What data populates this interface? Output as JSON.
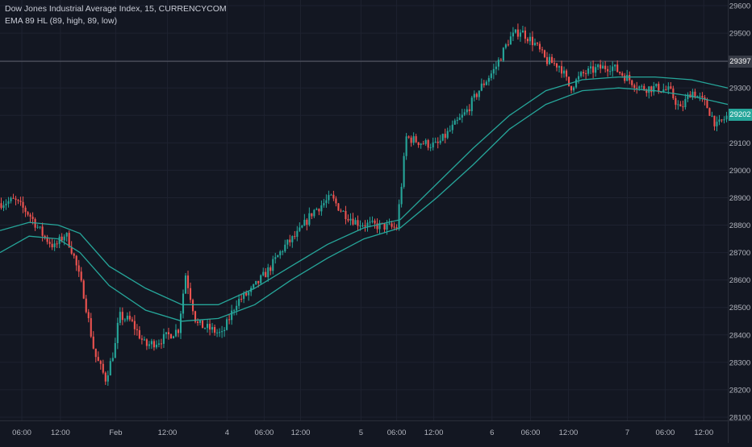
{
  "legend": {
    "symbol_line": "Dow Jones Industrial Average Index, 15, CURRENCYCOM",
    "indicator_line": "EMA 89 HL (89, high, 89, low)"
  },
  "price_tags": {
    "crosshair": "29397",
    "last": "29202"
  },
  "colors": {
    "background": "#131722",
    "up_candle": "#26a69a",
    "down_candle": "#ef5350",
    "ema_band": "#26a69a",
    "grid": "#1e2230",
    "axis_text": "#b2b5be"
  },
  "chart_data": {
    "type": "candlestick",
    "title": "Dow Jones Industrial Average Index, 15, CURRENCYCOM",
    "interval": "15",
    "ylim": [
      28100,
      29600
    ],
    "y_ticks": [
      "28100",
      "28200",
      "28300",
      "28400",
      "28500",
      "28600",
      "28700",
      "28800",
      "28900",
      "29000",
      "29100",
      "29200",
      "29300",
      "29400",
      "29500",
      "29600"
    ],
    "x_ticks": [
      {
        "label": "06:00",
        "pos": 0.03
      },
      {
        "label": "12:00",
        "pos": 0.083
      },
      {
        "label": "Feb",
        "pos": 0.159
      },
      {
        "label": "12:00",
        "pos": 0.23
      },
      {
        "label": "4",
        "pos": 0.312
      },
      {
        "label": "06:00",
        "pos": 0.363
      },
      {
        "label": "12:00",
        "pos": 0.413
      },
      {
        "label": "5",
        "pos": 0.496
      },
      {
        "label": "06:00",
        "pos": 0.545
      },
      {
        "label": "12:00",
        "pos": 0.596
      },
      {
        "label": "6",
        "pos": 0.676
      },
      {
        "label": "06:00",
        "pos": 0.729
      },
      {
        "label": "12:00",
        "pos": 0.781
      },
      {
        "label": "7",
        "pos": 0.862
      },
      {
        "label": "06:00",
        "pos": 0.914
      },
      {
        "label": "12:00",
        "pos": 0.967
      }
    ],
    "crosshair_price": 29397,
    "last_price": 29202,
    "price_path": [
      {
        "t": 0.0,
        "p": 28880
      },
      {
        "t": 0.02,
        "p": 28890
      },
      {
        "t": 0.04,
        "p": 28840
      },
      {
        "t": 0.06,
        "p": 28760
      },
      {
        "t": 0.075,
        "p": 28720
      },
      {
        "t": 0.09,
        "p": 28770
      },
      {
        "t": 0.1,
        "p": 28700
      },
      {
        "t": 0.115,
        "p": 28550
      },
      {
        "t": 0.13,
        "p": 28330
      },
      {
        "t": 0.145,
        "p": 28240
      },
      {
        "t": 0.152,
        "p": 28300
      },
      {
        "t": 0.16,
        "p": 28380
      },
      {
        "t": 0.163,
        "p": 28470
      },
      {
        "t": 0.18,
        "p": 28450
      },
      {
        "t": 0.2,
        "p": 28360
      },
      {
        "t": 0.22,
        "p": 28380
      },
      {
        "t": 0.245,
        "p": 28420
      },
      {
        "t": 0.255,
        "p": 28620
      },
      {
        "t": 0.27,
        "p": 28440
      },
      {
        "t": 0.29,
        "p": 28420
      },
      {
        "t": 0.305,
        "p": 28400
      },
      {
        "t": 0.325,
        "p": 28520
      },
      {
        "t": 0.345,
        "p": 28560
      },
      {
        "t": 0.37,
        "p": 28640
      },
      {
        "t": 0.39,
        "p": 28720
      },
      {
        "t": 0.41,
        "p": 28770
      },
      {
        "t": 0.43,
        "p": 28850
      },
      {
        "t": 0.455,
        "p": 28900
      },
      {
        "t": 0.47,
        "p": 28850
      },
      {
        "t": 0.49,
        "p": 28810
      },
      {
        "t": 0.51,
        "p": 28800
      },
      {
        "t": 0.545,
        "p": 28790
      },
      {
        "t": 0.553,
        "p": 28980
      },
      {
        "t": 0.558,
        "p": 29120
      },
      {
        "t": 0.58,
        "p": 29100
      },
      {
        "t": 0.6,
        "p": 29090
      },
      {
        "t": 0.62,
        "p": 29150
      },
      {
        "t": 0.64,
        "p": 29210
      },
      {
        "t": 0.66,
        "p": 29300
      },
      {
        "t": 0.68,
        "p": 29370
      },
      {
        "t": 0.7,
        "p": 29480
      },
      {
        "t": 0.715,
        "p": 29510
      },
      {
        "t": 0.735,
        "p": 29460
      },
      {
        "t": 0.75,
        "p": 29400
      },
      {
        "t": 0.77,
        "p": 29380
      },
      {
        "t": 0.783,
        "p": 29300
      },
      {
        "t": 0.8,
        "p": 29350
      },
      {
        "t": 0.82,
        "p": 29370
      },
      {
        "t": 0.84,
        "p": 29380
      },
      {
        "t": 0.86,
        "p": 29340
      },
      {
        "t": 0.88,
        "p": 29300
      },
      {
        "t": 0.9,
        "p": 29300
      },
      {
        "t": 0.92,
        "p": 29290
      },
      {
        "t": 0.935,
        "p": 29220
      },
      {
        "t": 0.95,
        "p": 29290
      },
      {
        "t": 0.97,
        "p": 29240
      },
      {
        "t": 0.985,
        "p": 29160
      },
      {
        "t": 1.0,
        "p": 29200
      }
    ],
    "series": [
      {
        "name": "EMA 89 High",
        "points": [
          {
            "t": 0.0,
            "p": 28780
          },
          {
            "t": 0.04,
            "p": 28810
          },
          {
            "t": 0.08,
            "p": 28800
          },
          {
            "t": 0.11,
            "p": 28770
          },
          {
            "t": 0.15,
            "p": 28650
          },
          {
            "t": 0.2,
            "p": 28570
          },
          {
            "t": 0.25,
            "p": 28510
          },
          {
            "t": 0.3,
            "p": 28510
          },
          {
            "t": 0.35,
            "p": 28570
          },
          {
            "t": 0.4,
            "p": 28650
          },
          {
            "t": 0.45,
            "p": 28730
          },
          {
            "t": 0.5,
            "p": 28790
          },
          {
            "t": 0.55,
            "p": 28820
          },
          {
            "t": 0.6,
            "p": 28950
          },
          {
            "t": 0.65,
            "p": 29080
          },
          {
            "t": 0.7,
            "p": 29200
          },
          {
            "t": 0.75,
            "p": 29290
          },
          {
            "t": 0.8,
            "p": 29330
          },
          {
            "t": 0.85,
            "p": 29340
          },
          {
            "t": 0.9,
            "p": 29340
          },
          {
            "t": 0.95,
            "p": 29330
          },
          {
            "t": 1.0,
            "p": 29300
          }
        ]
      },
      {
        "name": "EMA 89 Low",
        "points": [
          {
            "t": 0.0,
            "p": 28700
          },
          {
            "t": 0.04,
            "p": 28760
          },
          {
            "t": 0.08,
            "p": 28750
          },
          {
            "t": 0.11,
            "p": 28700
          },
          {
            "t": 0.15,
            "p": 28580
          },
          {
            "t": 0.2,
            "p": 28490
          },
          {
            "t": 0.25,
            "p": 28450
          },
          {
            "t": 0.3,
            "p": 28460
          },
          {
            "t": 0.35,
            "p": 28510
          },
          {
            "t": 0.4,
            "p": 28600
          },
          {
            "t": 0.45,
            "p": 28680
          },
          {
            "t": 0.5,
            "p": 28750
          },
          {
            "t": 0.55,
            "p": 28790
          },
          {
            "t": 0.6,
            "p": 28900
          },
          {
            "t": 0.65,
            "p": 29020
          },
          {
            "t": 0.7,
            "p": 29150
          },
          {
            "t": 0.75,
            "p": 29240
          },
          {
            "t": 0.8,
            "p": 29290
          },
          {
            "t": 0.85,
            "p": 29300
          },
          {
            "t": 0.9,
            "p": 29290
          },
          {
            "t": 0.95,
            "p": 29270
          },
          {
            "t": 1.0,
            "p": 29240
          }
        ]
      }
    ]
  }
}
